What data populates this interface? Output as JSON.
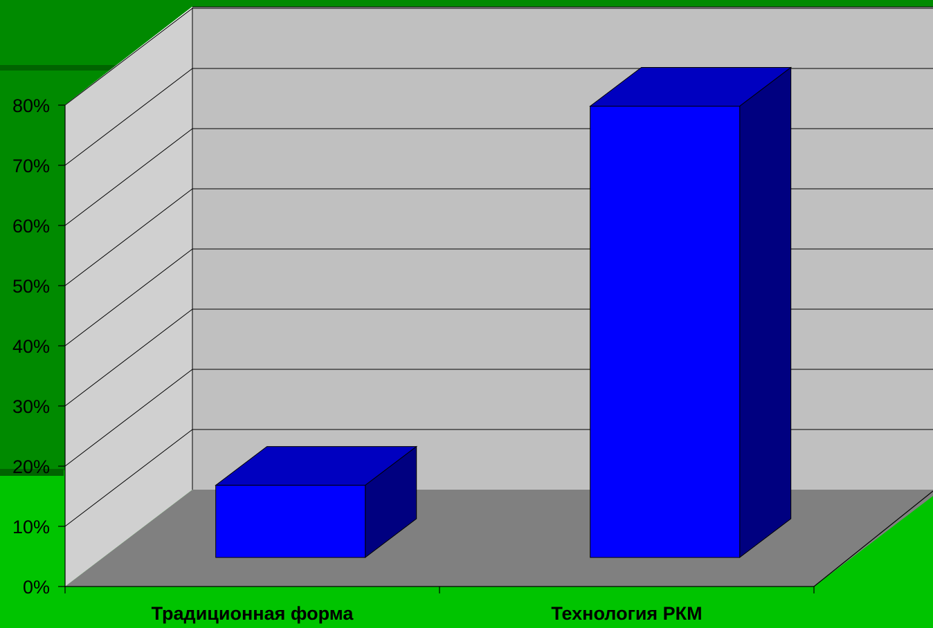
{
  "chart_data": {
    "type": "bar",
    "style": "3d-column",
    "categories": [
      "Традиционная форма",
      "Технология РКМ"
    ],
    "values": [
      12,
      75
    ],
    "yunit": "%",
    "ylim": [
      0,
      80
    ],
    "ytick_step": 10,
    "yticks": [
      "0%",
      "10%",
      "20%",
      "30%",
      "40%",
      "50%",
      "60%",
      "70%",
      "80%"
    ],
    "grid": true,
    "legend": "none",
    "title": "",
    "xlabel": "",
    "ylabel": "",
    "colors": {
      "bar_front": "#0000ff",
      "bar_top": "#0000c0",
      "bar_side": "#000080",
      "back_wall": "#c0c0c0",
      "side_wall": "#d0d0d0",
      "floor": "#808080"
    }
  }
}
